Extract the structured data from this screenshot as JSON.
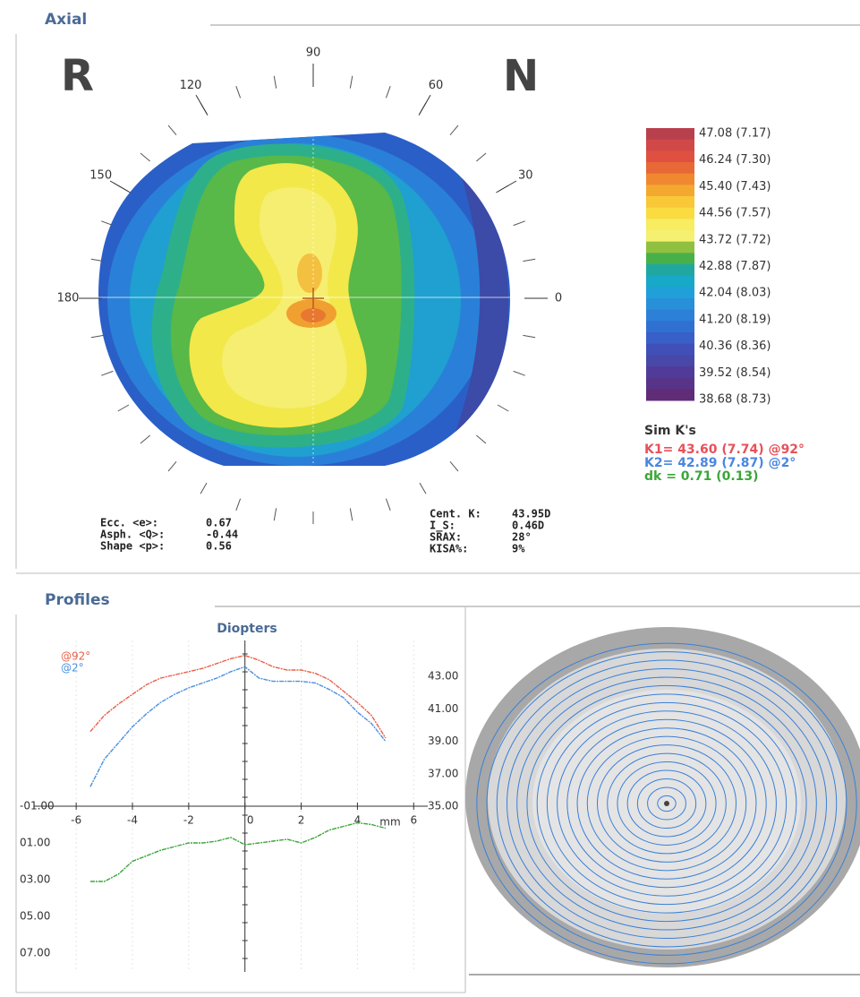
{
  "axial": {
    "title": "Axial",
    "eye": "R",
    "side": "N",
    "angle_ticks": [
      90,
      120,
      60,
      150,
      30,
      180,
      0
    ],
    "scale": {
      "labels": [
        "47.08 (7.17)",
        "46.24 (7.30)",
        "45.40 (7.43)",
        "44.56 (7.57)",
        "43.72 (7.72)",
        "42.88 (7.87)",
        "42.04 (8.03)",
        "41.20 (8.19)",
        "40.36 (8.36)",
        "39.52 (8.54)",
        "38.68 (8.73)"
      ],
      "colors": [
        "#b8404c",
        "#d04848",
        "#e05040",
        "#e86838",
        "#f08830",
        "#f4a830",
        "#f8c838",
        "#fadc40",
        "#f8ec60",
        "#f4f070",
        "#90c040",
        "#48b048",
        "#20a8a0",
        "#18a8c8",
        "#20a0d8",
        "#2890d8",
        "#2c80d8",
        "#3070d0",
        "#3860c8",
        "#4050b8",
        "#4848a8",
        "#503c98",
        "#583488",
        "#602c78"
      ]
    },
    "sim_k": {
      "title": "Sim K's",
      "lines": [
        {
          "text": "K1= 43.60 (7.74) @92°",
          "color": "#e8505a"
        },
        {
          "text": "K2= 42.89 (7.87) @2°",
          "color": "#4a86e0"
        },
        {
          "text": "dk = 0.71 (0.13)",
          "color": "#3aa63a"
        }
      ]
    },
    "indices_left": [
      {
        "label": "Ecc. <e>:",
        "value": "0.67"
      },
      {
        "label": "Asph. <Q>:",
        "value": "-0.44"
      },
      {
        "label": "Shape <p>:",
        "value": "0.56"
      }
    ],
    "indices_right": [
      {
        "label": "Cent. K:",
        "value": "43.95D"
      },
      {
        "label": "I_S:",
        "value": "0.46D"
      },
      {
        "label": "SRAX:",
        "value": "28°"
      },
      {
        "label": "KISA%:",
        "value": "9%"
      }
    ]
  },
  "profiles_title": "Profiles",
  "chart_data": {
    "type": "line",
    "title": "Diopters",
    "x_label": "mm",
    "x": [
      -5.5,
      -5,
      -4.5,
      -4,
      -3.5,
      -3,
      -2.5,
      -2,
      -1.5,
      -1,
      -0.5,
      0,
      0.5,
      1,
      1.5,
      2,
      2.5,
      3,
      3.5,
      4,
      4.5,
      5
    ],
    "xlim": [
      -7.5,
      6.5
    ],
    "xticks": [
      -6,
      -4,
      -2,
      0,
      2,
      4,
      6
    ],
    "ylim": [
      7,
      -1
    ],
    "yticks": [
      {
        "value": -1,
        "label": "-01.00"
      },
      {
        "value": 1,
        "label": "01.00"
      },
      {
        "value": 3,
        "label": "03.00"
      },
      {
        "value": 5,
        "label": "05.00"
      },
      {
        "value": 7,
        "label": "07.00"
      }
    ],
    "y2lim": [
      35,
      45
    ],
    "y2ticks": [
      {
        "value": 43,
        "label": "43.00"
      },
      {
        "value": 41,
        "label": "41.00"
      },
      {
        "value": 39,
        "label": "39.00"
      },
      {
        "value": 37,
        "label": "37.00"
      },
      {
        "value": 35,
        "label": "35.00"
      }
    ],
    "grid": true,
    "series": [
      {
        "name": "@92°",
        "color": "#e8604a",
        "axis": "y2",
        "values": [
          39.6,
          40.6,
          41.3,
          41.9,
          42.5,
          42.9,
          43.1,
          43.3,
          43.5,
          43.8,
          44.1,
          44.3,
          44.0,
          43.6,
          43.4,
          43.4,
          43.2,
          42.8,
          42.1,
          41.4,
          40.6,
          39.2
        ]
      },
      {
        "name": "@2°",
        "color": "#4a90e0",
        "axis": "y2",
        "values": [
          36.2,
          37.9,
          38.9,
          39.9,
          40.7,
          41.4,
          41.9,
          42.3,
          42.6,
          42.9,
          43.3,
          43.6,
          42.9,
          42.7,
          42.7,
          42.7,
          42.6,
          42.2,
          41.7,
          40.8,
          40.1,
          39.0
        ]
      },
      {
        "color": "#3aa63a",
        "values": [
          3.1,
          3.1,
          2.7,
          2.0,
          1.7,
          1.4,
          1.2,
          1.0,
          1.0,
          0.9,
          0.7,
          1.1,
          1.0,
          0.9,
          0.8,
          1.0,
          0.7,
          0.3,
          0.1,
          -0.1,
          0.0,
          0.2
        ]
      }
    ]
  }
}
